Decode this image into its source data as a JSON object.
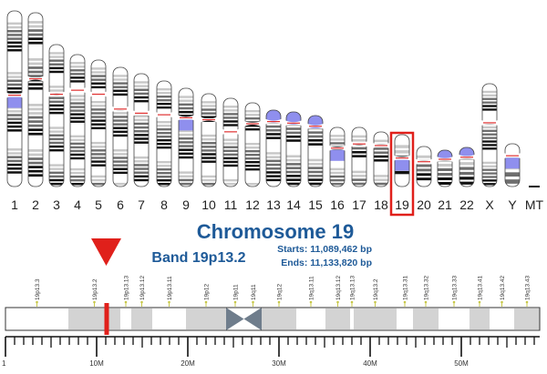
{
  "karyotype": {
    "chromosomes": [
      {
        "label": "1",
        "bands": "1112233344411111223344111223344411112233444111"
      },
      {
        "label": "2",
        "bands": "112233441112233344411122233344111223344411"
      },
      {
        "label": "3",
        "bands": "11223344111223334441112233344111223344"
      },
      {
        "label": "4",
        "bands": "112233441112233344411122333441122334"
      },
      {
        "label": "5",
        "bands": "1122334411122333444111223334411223"
      },
      {
        "label": "6",
        "bands": "11223344111223334441112233344112"
      },
      {
        "label": "7",
        "bands": "112233441112233344411122333441"
      },
      {
        "label": "8",
        "bands": "11223344111223334441112233344"
      },
      {
        "label": "9",
        "bands": "11223344111223334441112233"
      },
      {
        "label": "10",
        "bands": "1122334411122333444111223"
      },
      {
        "label": "11",
        "bands": "112233441112233344411122"
      },
      {
        "label": "12",
        "bands": "11223344111223334441112"
      },
      {
        "label": "13",
        "bands": "11223344111223334441"
      },
      {
        "label": "14",
        "bands": "1122334411122333444"
      },
      {
        "label": "15",
        "bands": "112233441112233344"
      },
      {
        "label": "16",
        "bands": "1122334411122333"
      },
      {
        "label": "17",
        "bands": "112233441112233"
      },
      {
        "label": "18",
        "bands": "11223344111223"
      },
      {
        "label": "19",
        "bands": "1122334411"
      },
      {
        "label": "20",
        "bands": "112233441"
      },
      {
        "label": "21",
        "bands": "11223344"
      },
      {
        "label": "22",
        "bands": "11223344"
      },
      {
        "label": "X",
        "bands": "11223344111223334441112233344"
      },
      {
        "label": "Y",
        "bands": "112233"
      },
      {
        "label": "MT",
        "bands": ""
      }
    ],
    "selected": "19",
    "highlight_color": "#e0201b",
    "centromere_color": "#e03030",
    "heterochromatin_color": "#8f8fee"
  },
  "info": {
    "title": "Chromosome 19",
    "band": "Band 19p13.2",
    "starts_label": "Starts: 11,089,462 bp",
    "ends_label": "Ends: 11,133,820 bp",
    "title_color": "#1e5a98"
  },
  "ideogram": {
    "length_mb": 58.6,
    "centromere_mb": [
      24.2,
      28.1
    ],
    "marker_mb": 11.1,
    "marker_color": "#e0201b",
    "bands": [
      {
        "name": "19p13.3",
        "start": 0,
        "end": 6.9,
        "stain": "white"
      },
      {
        "name": "19p13.2",
        "start": 6.9,
        "end": 12.6,
        "stain": "gray"
      },
      {
        "name": "19p13.13",
        "start": 12.6,
        "end": 13.8,
        "stain": "white"
      },
      {
        "name": "19p13.12",
        "start": 13.8,
        "end": 16.1,
        "stain": "gray"
      },
      {
        "name": "19p13.11",
        "start": 16.1,
        "end": 19.8,
        "stain": "white"
      },
      {
        "name": "19p12",
        "start": 19.8,
        "end": 24.2,
        "stain": "gray"
      },
      {
        "name": "19p11",
        "start": 24.2,
        "end": 26.2,
        "stain": "centromere"
      },
      {
        "name": "19q11",
        "start": 26.2,
        "end": 28.1,
        "stain": "centromere"
      },
      {
        "name": "19q12",
        "start": 28.1,
        "end": 31.9,
        "stain": "gray"
      },
      {
        "name": "19q13.11",
        "start": 31.9,
        "end": 35.1,
        "stain": "white"
      },
      {
        "name": "19q13.12",
        "start": 35.1,
        "end": 37.8,
        "stain": "gray"
      },
      {
        "name": "19q13.13",
        "start": 37.8,
        "end": 38.2,
        "stain": "white"
      },
      {
        "name": "19q13.2",
        "start": 38.2,
        "end": 42.9,
        "stain": "gray"
      },
      {
        "name": "19q13.31",
        "start": 42.9,
        "end": 44.7,
        "stain": "white"
      },
      {
        "name": "19q13.32",
        "start": 44.7,
        "end": 47.5,
        "stain": "gray"
      },
      {
        "name": "19q13.33",
        "start": 47.5,
        "end": 50.9,
        "stain": "white"
      },
      {
        "name": "19q13.41",
        "start": 50.9,
        "end": 53.1,
        "stain": "gray"
      },
      {
        "name": "19q13.42",
        "start": 53.1,
        "end": 55.8,
        "stain": "white"
      },
      {
        "name": "19q13.43",
        "start": 55.8,
        "end": 58.6,
        "stain": "gray"
      }
    ],
    "scale": {
      "major_ticks": [
        {
          "mb": 0,
          "label": "1"
        },
        {
          "mb": 10,
          "label": "10M"
        },
        {
          "mb": 20,
          "label": "20M"
        },
        {
          "mb": 30,
          "label": "30M"
        },
        {
          "mb": 40,
          "label": "40M"
        },
        {
          "mb": 50,
          "label": "50M"
        }
      ],
      "minor_step_mb": 1
    }
  }
}
